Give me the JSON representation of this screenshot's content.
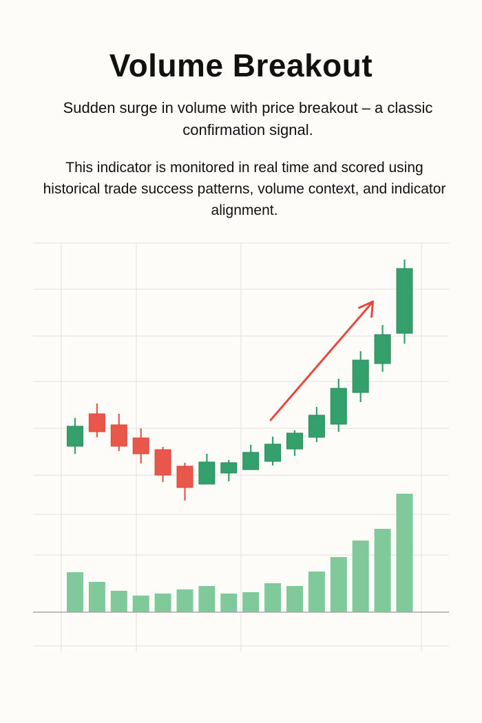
{
  "header": {
    "title": "Volume Breakout",
    "subtitle": "Sudden surge in volume with price breakout – a classic confirmation signal.",
    "description": "This indicator is monitored in real time and scored using historical trade success patterns, volume context, and indicator alignment."
  },
  "chart_data": {
    "type": "candlestick",
    "title": "",
    "xlabel": "",
    "ylabel": "",
    "grid": true,
    "colors": {
      "up": "#34a06b",
      "down": "#e8574a",
      "volume": "#7fc99a",
      "arrow": "#e8473c",
      "grid": "#e6e6e2",
      "axis": "#a8a8a8"
    },
    "candles": [
      {
        "open": 11.2,
        "close": 14.1,
        "high": 15.3,
        "low": 10.1
      },
      {
        "open": 15.9,
        "close": 13.3,
        "high": 17.4,
        "low": 12.5
      },
      {
        "open": 14.3,
        "close": 11.2,
        "high": 15.9,
        "low": 10.5
      },
      {
        "open": 12.4,
        "close": 10.1,
        "high": 13.8,
        "low": 8.7
      },
      {
        "open": 10.7,
        "close": 7.0,
        "high": 11.1,
        "low": 6.0
      },
      {
        "open": 8.3,
        "close": 5.2,
        "high": 8.8,
        "low": 3.3
      },
      {
        "open": 5.7,
        "close": 8.9,
        "high": 10.1,
        "low": 5.7
      },
      {
        "open": 7.3,
        "close": 8.8,
        "high": 9.2,
        "low": 6.1
      },
      {
        "open": 7.8,
        "close": 10.3,
        "high": 11.4,
        "low": 7.8
      },
      {
        "open": 9.0,
        "close": 11.5,
        "high": 12.6,
        "low": 8.4
      },
      {
        "open": 10.8,
        "close": 13.1,
        "high": 13.5,
        "low": 9.8
      },
      {
        "open": 12.5,
        "close": 15.7,
        "high": 16.9,
        "low": 11.8
      },
      {
        "open": 14.4,
        "close": 19.6,
        "high": 21.0,
        "low": 13.3
      },
      {
        "open": 19.0,
        "close": 23.7,
        "high": 25.0,
        "low": 17.6
      },
      {
        "open": 23.2,
        "close": 27.4,
        "high": 28.8,
        "low": 22.0
      },
      {
        "open": 27.6,
        "close": 37.0,
        "high": 38.3,
        "low": 26.1
      }
    ],
    "volume": [
      58,
      44,
      31,
      24,
      27,
      33,
      38,
      27,
      29,
      42,
      38,
      59,
      80,
      104,
      121,
      172
    ],
    "annotation": {
      "type": "arrow",
      "from_candle": 9,
      "to_candle": 14,
      "direction": "up"
    }
  }
}
